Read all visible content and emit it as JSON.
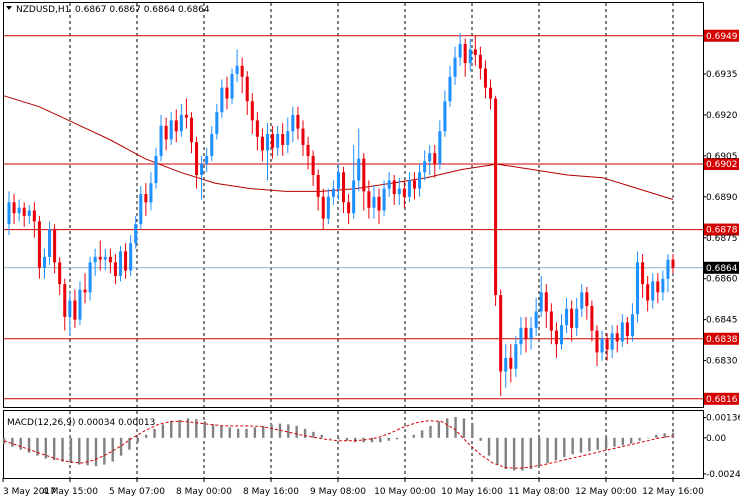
{
  "header": {
    "symbol_timeframe": "NZDUSD,H1",
    "ohlc": "0.6867 0.6867 0.6864 0.6864"
  },
  "macd_header": {
    "label": "MACD(12,26,9)",
    "values": "0.00034 0.00013"
  },
  "colors": {
    "bull": "#1e90ff",
    "bear": "#e8000b",
    "level_line": "#d40000",
    "ma_line": "#b40000",
    "grid": "#000000",
    "histogram": "#808080",
    "signal": "#d40000",
    "price_line": "#8cb4c8",
    "price_badge": "#000000"
  },
  "chart_data": [
    {
      "type": "candlestick",
      "title": "NZDUSD,H1",
      "ylim": [
        0.6813,
        0.6961
      ],
      "y_ticks": [
        "0.6935",
        "0.6920",
        "0.6905",
        "0.6890",
        "0.6875",
        "0.6860",
        "0.6845",
        "0.6830"
      ],
      "x_tick_labels": [
        "3 May 2017",
        "4 May 15:00",
        "5 May 07:00",
        "8 May 00:00",
        "8 May 16:00",
        "9 May 08:00",
        "10 May 00:00",
        "10 May 16:00",
        "11 May 08:00",
        "12 May 00:00",
        "12 May 16:00"
      ],
      "horizontal_levels": [
        "0.6949",
        "0.6902",
        "0.6878",
        "0.6838",
        "0.6816"
      ],
      "current_price": "0.6864",
      "ma_path": [
        [
          0.6927,
          0.6923,
          0.6917,
          0.6911,
          0.6904,
          0.6899,
          0.6895,
          0.6893,
          0.6892,
          0.6892,
          0.6893,
          0.6895,
          0.6897,
          0.69,
          0.6902,
          0.69,
          0.6898,
          0.6897,
          0.6893,
          0.6889
        ]
      ],
      "candles": [
        [
          0.688,
          0.6888,
          0.6892,
          0.6876
        ],
        [
          0.6888,
          0.6884,
          0.6891,
          0.688
        ],
        [
          0.6884,
          0.6886,
          0.6889,
          0.6881
        ],
        [
          0.6886,
          0.6883,
          0.6888,
          0.6879
        ],
        [
          0.6883,
          0.6885,
          0.6887,
          0.688
        ],
        [
          0.6885,
          0.6881,
          0.6888,
          0.6875
        ],
        [
          0.6881,
          0.6864,
          0.6883,
          0.686
        ],
        [
          0.6864,
          0.6868,
          0.6871,
          0.686
        ],
        [
          0.6868,
          0.6878,
          0.6881,
          0.6865
        ],
        [
          0.6878,
          0.6866,
          0.688,
          0.6862
        ],
        [
          0.6866,
          0.6858,
          0.6868,
          0.6854
        ],
        [
          0.6858,
          0.6846,
          0.686,
          0.6841
        ],
        [
          0.6846,
          0.6852,
          0.6855,
          0.6839
        ],
        [
          0.6852,
          0.6845,
          0.6856,
          0.6842
        ],
        [
          0.6845,
          0.6856,
          0.6859,
          0.6843
        ],
        [
          0.6856,
          0.6855,
          0.6862,
          0.6851
        ],
        [
          0.6855,
          0.6866,
          0.6868,
          0.6852
        ],
        [
          0.6866,
          0.6868,
          0.6871,
          0.6861
        ],
        [
          0.6868,
          0.6867,
          0.6874,
          0.6863
        ],
        [
          0.6867,
          0.6868,
          0.6871,
          0.6863
        ],
        [
          0.6868,
          0.6866,
          0.6871,
          0.6862
        ],
        [
          0.6866,
          0.6861,
          0.6869,
          0.6858
        ],
        [
          0.6861,
          0.687,
          0.6872,
          0.6859
        ],
        [
          0.687,
          0.6863,
          0.6873,
          0.686
        ],
        [
          0.6863,
          0.6873,
          0.6876,
          0.6861
        ],
        [
          0.6873,
          0.688,
          0.6883,
          0.6871
        ],
        [
          0.688,
          0.6891,
          0.6894,
          0.6878
        ],
        [
          0.6891,
          0.6888,
          0.6895,
          0.6883
        ],
        [
          0.6888,
          0.6895,
          0.6899,
          0.6885
        ],
        [
          0.6895,
          0.6905,
          0.6908,
          0.6893
        ],
        [
          0.6905,
          0.6916,
          0.692,
          0.6903
        ],
        [
          0.6916,
          0.6911,
          0.6919,
          0.6907
        ],
        [
          0.6911,
          0.6918,
          0.6921,
          0.6909
        ],
        [
          0.6918,
          0.6914,
          0.6922,
          0.691
        ],
        [
          0.6914,
          0.692,
          0.6924,
          0.6912
        ],
        [
          0.692,
          0.6919,
          0.6926,
          0.6915
        ],
        [
          0.6919,
          0.691,
          0.6921,
          0.6906
        ],
        [
          0.691,
          0.6898,
          0.6912,
          0.6893
        ],
        [
          0.6898,
          0.6902,
          0.6905,
          0.6889
        ],
        [
          0.6902,
          0.6905,
          0.6908,
          0.6899
        ],
        [
          0.6905,
          0.6913,
          0.6916,
          0.6903
        ],
        [
          0.6913,
          0.6921,
          0.6924,
          0.6911
        ],
        [
          0.6921,
          0.693,
          0.6933,
          0.6919
        ],
        [
          0.693,
          0.6926,
          0.6934,
          0.6922
        ],
        [
          0.6926,
          0.6935,
          0.6937,
          0.6924
        ],
        [
          0.6935,
          0.6938,
          0.6944,
          0.6932
        ],
        [
          0.6938,
          0.6934,
          0.6941,
          0.6928
        ],
        [
          0.6934,
          0.6925,
          0.6936,
          0.692
        ],
        [
          0.6925,
          0.6918,
          0.6928,
          0.6913
        ],
        [
          0.6918,
          0.6912,
          0.6921,
          0.6907
        ],
        [
          0.6912,
          0.6907,
          0.6915,
          0.6903
        ],
        [
          0.6907,
          0.6913,
          0.6917,
          0.6896
        ],
        [
          0.6913,
          0.6908,
          0.6916,
          0.6904
        ],
        [
          0.6908,
          0.6913,
          0.6916,
          0.6905
        ],
        [
          0.6913,
          0.6909,
          0.6917,
          0.6905
        ],
        [
          0.6909,
          0.6914,
          0.6919,
          0.6906
        ],
        [
          0.6914,
          0.692,
          0.6923,
          0.691
        ],
        [
          0.692,
          0.6915,
          0.6923,
          0.6911
        ],
        [
          0.6915,
          0.6909,
          0.6918,
          0.6905
        ],
        [
          0.6909,
          0.6905,
          0.6912,
          0.69
        ],
        [
          0.6905,
          0.6898,
          0.6907,
          0.6894
        ],
        [
          0.6898,
          0.689,
          0.69,
          0.6885
        ],
        [
          0.689,
          0.6882,
          0.6893,
          0.6878
        ],
        [
          0.6882,
          0.689,
          0.6893,
          0.688
        ],
        [
          0.689,
          0.6893,
          0.6896,
          0.6887
        ],
        [
          0.6893,
          0.6899,
          0.6902,
          0.6889
        ],
        [
          0.6899,
          0.6888,
          0.6901,
          0.6884
        ],
        [
          0.6888,
          0.6884,
          0.6891,
          0.688
        ],
        [
          0.6884,
          0.6896,
          0.6909,
          0.6882
        ],
        [
          0.6896,
          0.6904,
          0.6915,
          0.6892
        ],
        [
          0.6904,
          0.6892,
          0.6906,
          0.6885
        ],
        [
          0.6892,
          0.6886,
          0.6896,
          0.6882
        ],
        [
          0.6886,
          0.689,
          0.6894,
          0.6882
        ],
        [
          0.689,
          0.6885,
          0.6893,
          0.688
        ],
        [
          0.6885,
          0.6893,
          0.6896,
          0.6883
        ],
        [
          0.6893,
          0.6896,
          0.6899,
          0.689
        ],
        [
          0.6896,
          0.6891,
          0.6898,
          0.6887
        ],
        [
          0.6891,
          0.6893,
          0.6897,
          0.6887
        ],
        [
          0.6893,
          0.689,
          0.6896,
          0.6886
        ],
        [
          0.689,
          0.6896,
          0.6899,
          0.6888
        ],
        [
          0.6896,
          0.6893,
          0.6899,
          0.6889
        ],
        [
          0.6893,
          0.6899,
          0.6902,
          0.689
        ],
        [
          0.6899,
          0.6903,
          0.6907,
          0.6896
        ],
        [
          0.6903,
          0.6906,
          0.6909,
          0.6898
        ],
        [
          0.6906,
          0.6902,
          0.6909,
          0.6897
        ],
        [
          0.6902,
          0.6914,
          0.6918,
          0.69
        ],
        [
          0.6914,
          0.6925,
          0.6929,
          0.6912
        ],
        [
          0.6925,
          0.6934,
          0.6938,
          0.6923
        ],
        [
          0.6934,
          0.6941,
          0.6945,
          0.6931
        ],
        [
          0.6941,
          0.6946,
          0.695,
          0.6938
        ],
        [
          0.6946,
          0.6939,
          0.6948,
          0.6934
        ],
        [
          0.6939,
          0.6944,
          0.6948,
          0.6936
        ],
        [
          0.6944,
          0.6942,
          0.6949,
          0.6938
        ],
        [
          0.6942,
          0.6937,
          0.6945,
          0.6933
        ],
        [
          0.6937,
          0.693,
          0.694,
          0.6926
        ],
        [
          0.693,
          0.6926,
          0.6933,
          0.6922
        ],
        [
          0.6926,
          0.6854,
          0.6927,
          0.685
        ],
        [
          0.6854,
          0.6826,
          0.6856,
          0.6817
        ],
        [
          0.6826,
          0.6831,
          0.6836,
          0.682
        ],
        [
          0.6831,
          0.6827,
          0.6836,
          0.6822
        ],
        [
          0.6827,
          0.6836,
          0.6839,
          0.6824
        ],
        [
          0.6836,
          0.6842,
          0.6846,
          0.6832
        ],
        [
          0.6842,
          0.6838,
          0.6846,
          0.6833
        ],
        [
          0.6838,
          0.6842,
          0.6846,
          0.6834
        ],
        [
          0.6842,
          0.6848,
          0.6853,
          0.6839
        ],
        [
          0.6848,
          0.6855,
          0.6861,
          0.6846
        ],
        [
          0.6855,
          0.6848,
          0.6858,
          0.6842
        ],
        [
          0.6848,
          0.6841,
          0.6851,
          0.6836
        ],
        [
          0.6841,
          0.6836,
          0.6844,
          0.6831
        ],
        [
          0.6836,
          0.6843,
          0.6847,
          0.6834
        ],
        [
          0.6843,
          0.6849,
          0.6853,
          0.684
        ],
        [
          0.6849,
          0.6842,
          0.6852,
          0.6837
        ],
        [
          0.6842,
          0.6849,
          0.6853,
          0.6839
        ],
        [
          0.6849,
          0.6855,
          0.6858,
          0.6846
        ],
        [
          0.6855,
          0.685,
          0.6857,
          0.6845
        ],
        [
          0.685,
          0.6841,
          0.6852,
          0.6837
        ],
        [
          0.6841,
          0.6833,
          0.6843,
          0.6828
        ],
        [
          0.6833,
          0.6838,
          0.6841,
          0.683
        ],
        [
          0.6838,
          0.6834,
          0.684,
          0.683
        ],
        [
          0.6834,
          0.684,
          0.6843,
          0.6831
        ],
        [
          0.684,
          0.6837,
          0.6843,
          0.6833
        ],
        [
          0.6837,
          0.6844,
          0.6847,
          0.6835
        ],
        [
          0.6844,
          0.6839,
          0.6846,
          0.6836
        ],
        [
          0.6839,
          0.6847,
          0.6851,
          0.6837
        ],
        [
          0.6847,
          0.6866,
          0.687,
          0.6844
        ],
        [
          0.6866,
          0.6858,
          0.6869,
          0.6853
        ],
        [
          0.6858,
          0.6852,
          0.6861,
          0.6848
        ],
        [
          0.6852,
          0.6859,
          0.6862,
          0.6849
        ],
        [
          0.6859,
          0.6855,
          0.6862,
          0.6851
        ],
        [
          0.6855,
          0.686,
          0.6863,
          0.6852
        ],
        [
          0.686,
          0.6867,
          0.6869,
          0.6855
        ],
        [
          0.6867,
          0.6864,
          0.6869,
          0.6862
        ]
      ]
    },
    {
      "type": "bar",
      "title": "MACD(12,26,9)",
      "ylim": [
        -0.0027,
        0.0018
      ],
      "y_ticks": [
        "0.00136",
        "0.00",
        "-0.00242"
      ],
      "values": [
        -0.0004,
        -0.0006,
        -0.0008,
        -0.001,
        -0.0012,
        -0.0014,
        -0.0015,
        -0.0016,
        -0.0017,
        -0.0018,
        -0.00185,
        -0.0019,
        -0.0018,
        -0.0016,
        -0.0012,
        -0.0008,
        -0.0003,
        0.0002,
        0.0006,
        0.0009,
        0.0011,
        0.0012,
        0.0013,
        0.00125,
        0.0011,
        0.0009,
        0.0008,
        0.0007,
        0.0006,
        0.0006,
        0.0007,
        0.0008,
        0.0009,
        0.00095,
        0.0009,
        0.0008,
        0.0006,
        0.0004,
        0.0002,
        0.0,
        -0.0001,
        -0.0002,
        -0.0003,
        -0.0003,
        -0.0003,
        -0.0003,
        -0.0002,
        -0.0001,
        0.0,
        0.0002,
        0.0005,
        0.0008,
        0.0011,
        0.0013,
        0.0014,
        0.0013,
        0.001,
        -0.0002,
        -0.0012,
        -0.0018,
        -0.0021,
        -0.0022,
        -0.0022,
        -0.0021,
        -0.0019,
        -0.0017,
        -0.0015,
        -0.0013,
        -0.0011,
        -0.001,
        -0.0009,
        -0.0008,
        -0.0007,
        -0.0006,
        -0.0005,
        -0.0004,
        -0.0002,
        0.0,
        0.0002,
        0.0003,
        0.00034
      ],
      "signal": [
        -0.0002,
        -0.0005,
        -0.0008,
        -0.0011,
        -0.0014,
        -0.0016,
        -0.0017,
        -0.0015,
        -0.0011,
        -0.0006,
        0.0,
        0.0005,
        0.0009,
        0.0011,
        0.0011,
        0.001,
        0.0009,
        0.0008,
        0.0008,
        0.0008,
        0.00075,
        0.0006,
        0.0004,
        0.0002,
        5e-05,
        -0.0001,
        -0.0002,
        -0.0002,
        -0.00015,
        0.0,
        0.0003,
        0.0007,
        0.001,
        0.00115,
        0.0011,
        0.0006,
        -0.0003,
        -0.0011,
        -0.0017,
        -0.002,
        -0.00205,
        -0.00195,
        -0.0018,
        -0.0016,
        -0.0014,
        -0.0012,
        -0.001,
        -0.0008,
        -0.0006,
        -0.0004,
        -0.0002,
        0.0,
        0.00013
      ]
    }
  ]
}
